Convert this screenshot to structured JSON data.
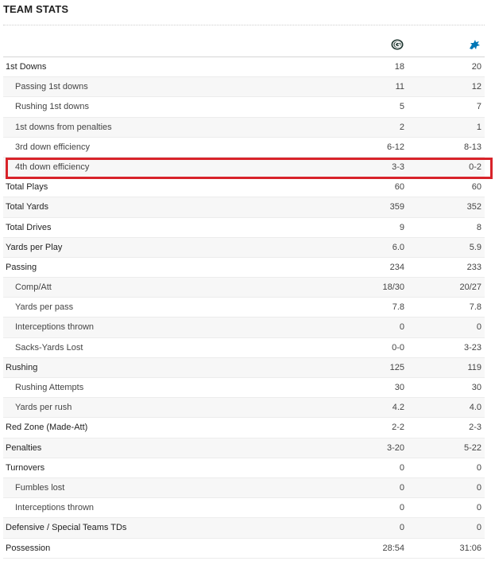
{
  "title": "TEAM STATS",
  "teams": {
    "home": {
      "icon": "packers-logo-icon",
      "color": "#203731",
      "accent": "#ffb612"
    },
    "away": {
      "icon": "lions-logo-icon",
      "color": "#0076b6"
    }
  },
  "highlight_color": "#d8232a",
  "rows": [
    {
      "label": "1st Downs",
      "v1": "18",
      "v2": "20",
      "type": "main"
    },
    {
      "label": "Passing 1st downs",
      "v1": "11",
      "v2": "12",
      "type": "sub"
    },
    {
      "label": "Rushing 1st downs",
      "v1": "5",
      "v2": "7",
      "type": "sub"
    },
    {
      "label": "1st downs from penalties",
      "v1": "2",
      "v2": "1",
      "type": "sub"
    },
    {
      "label": "3rd down efficiency",
      "v1": "6-12",
      "v2": "8-13",
      "type": "sub"
    },
    {
      "label": "4th down efficiency",
      "v1": "3-3",
      "v2": "0-2",
      "type": "sub"
    },
    {
      "label": "Total Plays",
      "v1": "60",
      "v2": "60",
      "type": "main"
    },
    {
      "label": "Total Yards",
      "v1": "359",
      "v2": "352",
      "type": "main"
    },
    {
      "label": "Total Drives",
      "v1": "9",
      "v2": "8",
      "type": "main"
    },
    {
      "label": "Yards per Play",
      "v1": "6.0",
      "v2": "5.9",
      "type": "main"
    },
    {
      "label": "Passing",
      "v1": "234",
      "v2": "233",
      "type": "main"
    },
    {
      "label": "Comp/Att",
      "v1": "18/30",
      "v2": "20/27",
      "type": "sub"
    },
    {
      "label": "Yards per pass",
      "v1": "7.8",
      "v2": "7.8",
      "type": "sub"
    },
    {
      "label": "Interceptions thrown",
      "v1": "0",
      "v2": "0",
      "type": "sub"
    },
    {
      "label": "Sacks-Yards Lost",
      "v1": "0-0",
      "v2": "3-23",
      "type": "sub"
    },
    {
      "label": "Rushing",
      "v1": "125",
      "v2": "119",
      "type": "main"
    },
    {
      "label": "Rushing Attempts",
      "v1": "30",
      "v2": "30",
      "type": "sub"
    },
    {
      "label": "Yards per rush",
      "v1": "4.2",
      "v2": "4.0",
      "type": "sub"
    },
    {
      "label": "Red Zone (Made-Att)",
      "v1": "2-2",
      "v2": "2-3",
      "type": "main"
    },
    {
      "label": "Penalties",
      "v1": "3-20",
      "v2": "5-22",
      "type": "main"
    },
    {
      "label": "Turnovers",
      "v1": "0",
      "v2": "0",
      "type": "main"
    },
    {
      "label": "Fumbles lost",
      "v1": "0",
      "v2": "0",
      "type": "sub"
    },
    {
      "label": "Interceptions thrown",
      "v1": "0",
      "v2": "0",
      "type": "sub"
    },
    {
      "label": "Defensive / Special Teams TDs",
      "v1": "0",
      "v2": "0",
      "type": "main"
    },
    {
      "label": "Possession",
      "v1": "28:54",
      "v2": "31:06",
      "type": "main"
    }
  ]
}
